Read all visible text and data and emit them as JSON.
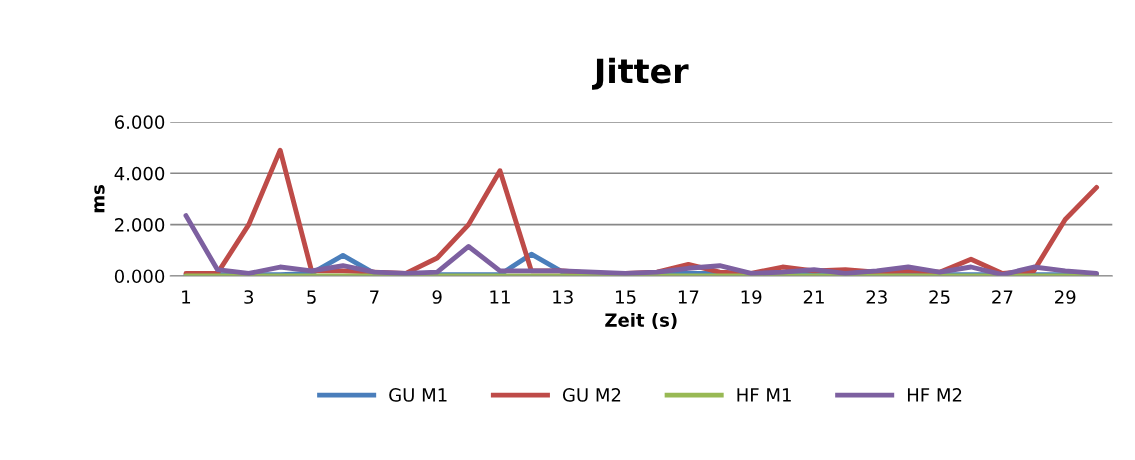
{
  "chart_data": {
    "type": "line",
    "title": "Jitter",
    "xlabel": "Zeit (s)",
    "ylabel": "ms",
    "categories": [
      "1",
      null,
      "3",
      null,
      "5",
      null,
      "7",
      null,
      "9",
      null,
      "11",
      null,
      "13",
      null,
      "15",
      null,
      "17",
      null,
      "19",
      null,
      "21",
      null,
      "23",
      null,
      "25",
      null,
      "27",
      null,
      "29",
      null
    ],
    "series": [
      {
        "name": "GU M1",
        "color": "#4a7ebb",
        "values": [
          0.05,
          0.05,
          0.05,
          0.05,
          0.1,
          0.8,
          0.1,
          0.05,
          0.05,
          0.05,
          0.05,
          0.85,
          0.15,
          0.1,
          0.05,
          0.1,
          0.1,
          0.1,
          0.05,
          0.05,
          0.1,
          0.05,
          0.05,
          0.05,
          0.05,
          0.05,
          0.05,
          0.05,
          0.05,
          0.05
        ]
      },
      {
        "name": "GU M2",
        "color": "#be4b48",
        "values": [
          0.1,
          0.1,
          2.0,
          4.9,
          0.2,
          0.2,
          0.15,
          0.1,
          0.7,
          2.0,
          4.1,
          0.2,
          0.2,
          0.1,
          0.1,
          0.15,
          0.45,
          0.15,
          0.1,
          0.35,
          0.2,
          0.25,
          0.15,
          0.2,
          0.15,
          0.65,
          0.1,
          0.2,
          2.2,
          3.45
        ]
      },
      {
        "name": "HF M1",
        "color": "#98b954",
        "values": [
          0.0,
          0.0,
          0.0,
          0.0,
          0.0,
          0.0,
          0.0,
          0.0,
          0.0,
          0.0,
          0.0,
          0.0,
          0.0,
          0.0,
          0.0,
          0.0,
          0.0,
          0.0,
          0.0,
          0.0,
          0.0,
          0.0,
          0.0,
          0.0,
          0.0,
          0.0,
          0.0,
          0.0,
          0.0,
          0.0
        ]
      },
      {
        "name": "HF M2",
        "color": "#7d60a0",
        "values": [
          2.35,
          0.25,
          0.1,
          0.35,
          0.2,
          0.4,
          0.15,
          0.1,
          0.15,
          1.15,
          0.2,
          0.2,
          0.2,
          0.15,
          0.1,
          0.15,
          0.3,
          0.4,
          0.1,
          0.15,
          0.25,
          0.1,
          0.2,
          0.35,
          0.15,
          0.35,
          0.05,
          0.35,
          0.2,
          0.1
        ]
      }
    ],
    "ylim": [
      0,
      6
    ],
    "yticks": [
      {
        "value": 0,
        "label": "0.000"
      },
      {
        "value": 2,
        "label": "2.000"
      },
      {
        "value": 4,
        "label": "4.000"
      },
      {
        "value": 6,
        "label": "6.000"
      }
    ],
    "grid": "y",
    "legend": "bottom",
    "marker": "none",
    "line_style": "solid"
  }
}
